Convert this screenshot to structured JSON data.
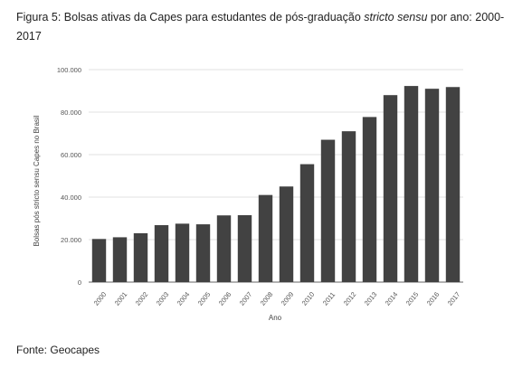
{
  "figure": {
    "title_prefix": "Figura 5: Bolsas ativas da Capes para estudantes de pós-graduação ",
    "title_emphasis": "stricto sensu",
    "title_suffix": " por ano: 2000-2017",
    "source": "Fonte: Geocapes"
  },
  "chart_data": {
    "type": "bar",
    "xlabel": "Ano",
    "ylabel": "Bolsas pós stricto sensu Capes no Brasil",
    "ylim": [
      0,
      100000
    ],
    "yticks": [
      "0",
      "20.000",
      "40.000",
      "60.000",
      "80.000",
      "100.000"
    ],
    "ytick_values": [
      0,
      20000,
      40000,
      60000,
      80000,
      100000
    ],
    "grid": true,
    "categories": [
      "2000",
      "2001",
      "2002",
      "2003",
      "2004",
      "2005",
      "2006",
      "2007",
      "2008",
      "2009",
      "2010",
      "2011",
      "2012",
      "2013",
      "2014",
      "2015",
      "2016",
      "2017"
    ],
    "values": [
      20300,
      21100,
      23000,
      26800,
      27500,
      27200,
      31400,
      31500,
      41000,
      45000,
      55500,
      67000,
      71000,
      77700,
      88000,
      92300,
      91000,
      91800
    ],
    "bar_color": "#424242"
  }
}
